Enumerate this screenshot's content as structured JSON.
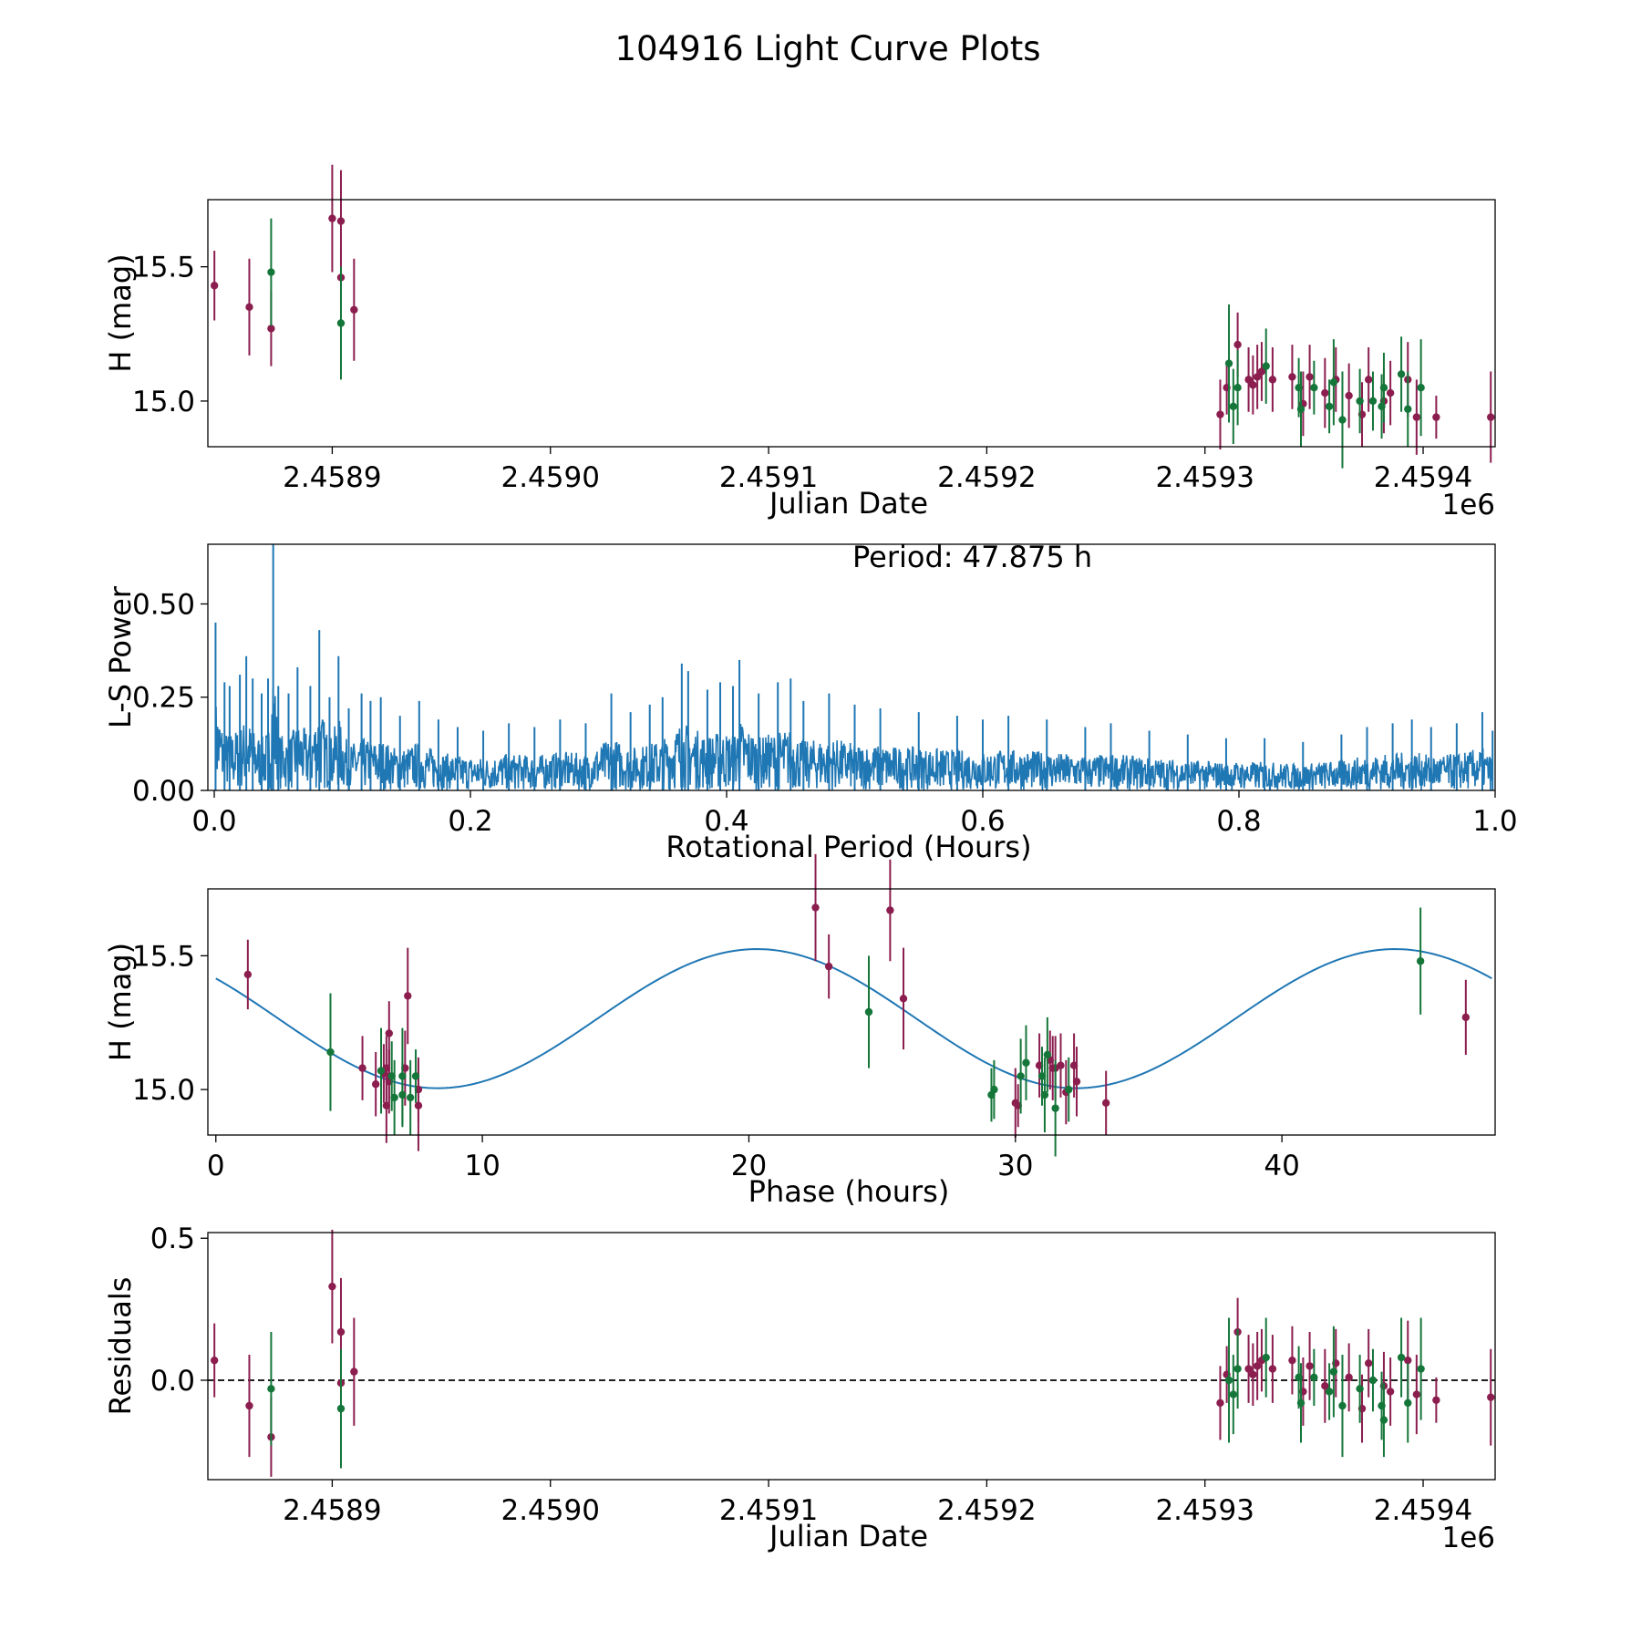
{
  "colors": {
    "red": "#8b1e4f",
    "green": "#15763a",
    "line": "#1f77b4"
  },
  "chart_data": {
    "title": "104916 Light Curve Plots",
    "panels": [
      {
        "type": "scatter",
        "xlabel": "Julian Date",
        "ylabel": "H (mag)",
        "offset_text": "1e6",
        "xlim": [
          2458843,
          2459433
        ],
        "ylim": [
          14.83,
          15.75
        ],
        "xticks": [
          2458900,
          2459000,
          2459100,
          2459200,
          2459300,
          2459400
        ],
        "xticklabels": [
          "2.4589",
          "2.4590",
          "2.4591",
          "2.4592",
          "2.4593",
          "2.4594"
        ],
        "yticks": [
          15.0,
          15.5
        ],
        "yticklabels": [
          "15.0",
          "15.5"
        ]
      },
      {
        "type": "line",
        "xlabel": "Rotational Period (Hours)",
        "ylabel": "L-S Power",
        "annotation": "Period: 47.875 h",
        "xlim": [
          -0.005,
          1.0
        ],
        "ylim": [
          0,
          0.66
        ],
        "xticks": [
          0.0,
          0.2,
          0.4,
          0.6,
          0.8,
          1.0
        ],
        "xticklabels": [
          "0.0",
          "0.2",
          "0.4",
          "0.6",
          "0.8",
          "1.0"
        ],
        "yticks": [
          0.0,
          0.25,
          0.5
        ],
        "yticklabels": [
          "0.00",
          "0.25",
          "0.50"
        ],
        "peaks": [
          [
            0.001,
            0.45
          ],
          [
            0.008,
            0.29
          ],
          [
            0.012,
            0.28
          ],
          [
            0.02,
            0.31
          ],
          [
            0.025,
            0.36
          ],
          [
            0.03,
            0.3
          ],
          [
            0.037,
            0.26
          ],
          [
            0.042,
            0.3
          ],
          [
            0.046,
            0.66
          ],
          [
            0.05,
            0.28
          ],
          [
            0.058,
            0.26
          ],
          [
            0.065,
            0.33
          ],
          [
            0.075,
            0.28
          ],
          [
            0.082,
            0.43
          ],
          [
            0.09,
            0.25
          ],
          [
            0.097,
            0.36
          ],
          [
            0.105,
            0.22
          ],
          [
            0.115,
            0.26
          ],
          [
            0.122,
            0.24
          ],
          [
            0.13,
            0.25
          ],
          [
            0.145,
            0.2
          ],
          [
            0.16,
            0.24
          ],
          [
            0.175,
            0.19
          ],
          [
            0.19,
            0.17
          ],
          [
            0.21,
            0.16
          ],
          [
            0.23,
            0.18
          ],
          [
            0.25,
            0.17
          ],
          [
            0.27,
            0.19
          ],
          [
            0.29,
            0.18
          ],
          [
            0.31,
            0.26
          ],
          [
            0.325,
            0.21
          ],
          [
            0.34,
            0.23
          ],
          [
            0.35,
            0.25
          ],
          [
            0.365,
            0.34
          ],
          [
            0.37,
            0.32
          ],
          [
            0.385,
            0.27
          ],
          [
            0.395,
            0.29
          ],
          [
            0.405,
            0.28
          ],
          [
            0.41,
            0.35
          ],
          [
            0.425,
            0.26
          ],
          [
            0.44,
            0.29
          ],
          [
            0.45,
            0.3
          ],
          [
            0.46,
            0.24
          ],
          [
            0.48,
            0.26
          ],
          [
            0.5,
            0.23
          ],
          [
            0.52,
            0.22
          ],
          [
            0.55,
            0.21
          ],
          [
            0.58,
            0.2
          ],
          [
            0.6,
            0.19
          ],
          [
            0.62,
            0.2
          ],
          [
            0.65,
            0.19
          ],
          [
            0.68,
            0.17
          ],
          [
            0.7,
            0.18
          ],
          [
            0.73,
            0.16
          ],
          [
            0.76,
            0.15
          ],
          [
            0.79,
            0.14
          ],
          [
            0.82,
            0.14
          ],
          [
            0.85,
            0.13
          ],
          [
            0.88,
            0.15
          ],
          [
            0.9,
            0.17
          ],
          [
            0.92,
            0.18
          ],
          [
            0.935,
            0.19
          ],
          [
            0.95,
            0.17
          ],
          [
            0.97,
            0.18
          ],
          [
            0.99,
            0.21
          ],
          [
            0.998,
            0.16
          ]
        ]
      },
      {
        "type": "scatter",
        "xlabel": "Phase (hours)",
        "ylabel": "H (mag)",
        "xlim": [
          -0.3,
          48.0
        ],
        "ylim": [
          14.83,
          15.75
        ],
        "xticks": [
          0,
          10,
          20,
          30,
          40
        ],
        "xticklabels": [
          "0",
          "10",
          "20",
          "30",
          "40"
        ],
        "yticks": [
          15.0,
          15.5
        ],
        "yticklabels": [
          "15.0",
          "15.5"
        ],
        "model": {
          "mean": 15.265,
          "amplitude": 0.26,
          "period_hours": 23.9375,
          "peak_phase": 20.3,
          "x_range": [
            0,
            47.875
          ]
        }
      },
      {
        "type": "scatter",
        "xlabel": "Julian Date",
        "ylabel": "Residuals",
        "offset_text": "1e6",
        "xlim": [
          2458843,
          2459433
        ],
        "ylim": [
          -0.35,
          0.52
        ],
        "xticks": [
          2458900,
          2459000,
          2459100,
          2459200,
          2459300,
          2459400
        ],
        "xticklabels": [
          "2.4589",
          "2.4590",
          "2.4591",
          "2.4592",
          "2.4593",
          "2.4594"
        ],
        "yticks": [
          0.0,
          0.5
        ],
        "yticklabels": [
          "0.0",
          "0.5"
        ],
        "zero_line": true
      }
    ],
    "series": [
      {
        "name": "red",
        "points": [
          {
            "jd": 2458846,
            "mag": 15.43,
            "err": 0.13,
            "phase": 1.2,
            "res": 0.07
          },
          {
            "jd": 2458862,
            "mag": 15.35,
            "err": 0.18,
            "phase": 7.2,
            "res": -0.09
          },
          {
            "jd": 2458872,
            "mag": 15.27,
            "err": 0.14,
            "phase": 46.9,
            "res": -0.2
          },
          {
            "jd": 2458900,
            "mag": 15.68,
            "err": 0.2,
            "phase": 22.5,
            "res": 0.33
          },
          {
            "jd": 2458904,
            "mag": 15.67,
            "err": 0.19,
            "phase": 25.3,
            "res": 0.17
          },
          {
            "jd": 2458904,
            "mag": 15.46,
            "err": 0.12,
            "phase": 23.0,
            "res": -0.01
          },
          {
            "jd": 2458910,
            "mag": 15.34,
            "err": 0.19,
            "phase": 25.8,
            "res": 0.03
          },
          {
            "jd": 2459307,
            "mag": 14.95,
            "err": 0.13,
            "phase": 30.0,
            "res": -0.08
          },
          {
            "jd": 2459310,
            "mag": 15.05,
            "err": 0.1,
            "phase": 6.5,
            "res": 0.02
          },
          {
            "jd": 2459315,
            "mag": 15.21,
            "err": 0.12,
            "phase": 6.5,
            "res": 0.17
          },
          {
            "jd": 2459320,
            "mag": 15.08,
            "err": 0.12,
            "phase": 6.4,
            "res": 0.04
          },
          {
            "jd": 2459322,
            "mag": 15.06,
            "err": 0.11,
            "phase": 6.3,
            "res": 0.02
          },
          {
            "jd": 2459324,
            "mag": 15.09,
            "err": 0.12,
            "phase": 30.9,
            "res": 0.05
          },
          {
            "jd": 2459326,
            "mag": 15.11,
            "err": 0.11,
            "phase": 31.3,
            "res": 0.07
          },
          {
            "jd": 2459331,
            "mag": 15.08,
            "err": 0.12,
            "phase": 31.4,
            "res": 0.04
          },
          {
            "jd": 2459340,
            "mag": 15.09,
            "err": 0.12,
            "phase": 31.7,
            "res": 0.07
          },
          {
            "jd": 2459345,
            "mag": 14.99,
            "err": 0.12,
            "phase": 31.9,
            "res": -0.04
          },
          {
            "jd": 2459348,
            "mag": 15.09,
            "err": 0.12,
            "phase": 32.2,
            "res": 0.05
          },
          {
            "jd": 2459355,
            "mag": 15.03,
            "err": 0.13,
            "phase": 32.3,
            "res": -0.02
          },
          {
            "jd": 2459360,
            "mag": 15.08,
            "err": 0.12,
            "phase": 31.5,
            "res": 0.06
          },
          {
            "jd": 2459366,
            "mag": 15.02,
            "err": 0.12,
            "phase": 6.0,
            "res": 0.01
          },
          {
            "jd": 2459372,
            "mag": 14.95,
            "err": 0.12,
            "phase": 33.4,
            "res": -0.1
          },
          {
            "jd": 2459375,
            "mag": 15.08,
            "err": 0.12,
            "phase": 5.5,
            "res": 0.06
          },
          {
            "jd": 2459382,
            "mag": 15.0,
            "err": 0.12,
            "phase": 7.6,
            "res": -0.02
          },
          {
            "jd": 2459385,
            "mag": 15.03,
            "err": 0.12,
            "phase": 6.5,
            "res": -0.04
          },
          {
            "jd": 2459393,
            "mag": 15.08,
            "err": 0.14,
            "phase": 7.1,
            "res": 0.07
          },
          {
            "jd": 2459397,
            "mag": 14.94,
            "err": 0.14,
            "phase": 6.4,
            "res": -0.05
          },
          {
            "jd": 2459406,
            "mag": 14.94,
            "err": 0.08,
            "phase": 30.1,
            "res": -0.07
          },
          {
            "jd": 2459431,
            "mag": 14.94,
            "err": 0.17,
            "phase": 7.6,
            "res": -0.06
          }
        ]
      },
      {
        "name": "green",
        "points": [
          {
            "jd": 2458872,
            "mag": 15.48,
            "err": 0.2,
            "phase": 45.2,
            "res": -0.03
          },
          {
            "jd": 2458904,
            "mag": 15.29,
            "err": 0.21,
            "phase": 24.5,
            "res": -0.1
          },
          {
            "jd": 2459311,
            "mag": 15.14,
            "err": 0.22,
            "phase": 4.3,
            "res": 0.0
          },
          {
            "jd": 2459313,
            "mag": 14.98,
            "err": 0.14,
            "phase": 31.1,
            "res": -0.05
          },
          {
            "jd": 2459315,
            "mag": 15.05,
            "err": 0.14,
            "phase": 30.2,
            "res": 0.04
          },
          {
            "jd": 2459328,
            "mag": 15.13,
            "err": 0.14,
            "phase": 31.2,
            "res": 0.08
          },
          {
            "jd": 2459343,
            "mag": 15.05,
            "err": 0.11,
            "phase": 31.0,
            "res": 0.01
          },
          {
            "jd": 2459344,
            "mag": 14.97,
            "err": 0.14,
            "phase": 7.3,
            "res": -0.08
          },
          {
            "jd": 2459350,
            "mag": 15.05,
            "err": 0.1,
            "phase": 7.5,
            "res": 0.01
          },
          {
            "jd": 2459357,
            "mag": 14.98,
            "err": 0.1,
            "phase": 29.1,
            "res": -0.04
          },
          {
            "jd": 2459359,
            "mag": 15.07,
            "err": 0.16,
            "phase": 6.2,
            "res": 0.03
          },
          {
            "jd": 2459363,
            "mag": 14.93,
            "err": 0.18,
            "phase": 31.5,
            "res": -0.09
          },
          {
            "jd": 2459371,
            "mag": 15.0,
            "err": 0.12,
            "phase": 32.0,
            "res": -0.03
          },
          {
            "jd": 2459377,
            "mag": 15.0,
            "err": 0.11,
            "phase": 29.2,
            "res": 0.0
          },
          {
            "jd": 2459381,
            "mag": 14.98,
            "err": 0.12,
            "phase": 7.0,
            "res": -0.09
          },
          {
            "jd": 2459382,
            "mag": 15.05,
            "err": 0.13,
            "phase": 6.6,
            "res": -0.14
          },
          {
            "jd": 2459390,
            "mag": 15.1,
            "err": 0.14,
            "phase": 30.4,
            "res": 0.08
          },
          {
            "jd": 2459393,
            "mag": 14.97,
            "err": 0.14,
            "phase": 6.7,
            "res": -0.08
          },
          {
            "jd": 2459399,
            "mag": 15.05,
            "err": 0.18,
            "phase": 7.0,
            "res": 0.04
          }
        ]
      }
    ]
  }
}
